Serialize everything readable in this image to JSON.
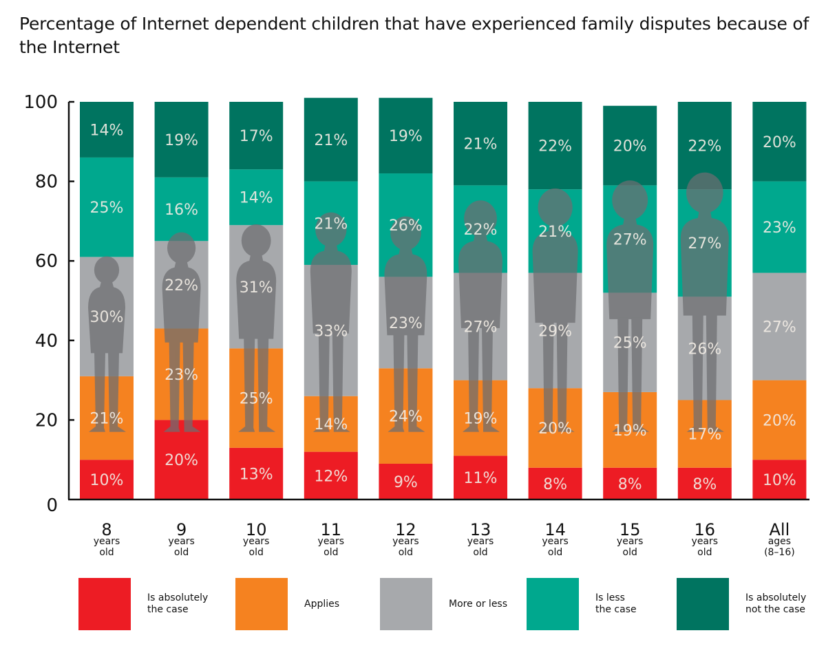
{
  "title": "Percentage of Internet dependent children that have experienced family disputes because of the Internet",
  "chart_data": {
    "type": "bar",
    "stacked": true,
    "title": "Percentage of Internet dependent children that have experienced family disputes because of the Internet",
    "xlabel": "",
    "ylabel": "",
    "ylim": [
      0,
      100
    ],
    "yticks": [
      0,
      20,
      40,
      60,
      80,
      100
    ],
    "grid": false,
    "legend_position": "bottom",
    "categories": [
      {
        "main": "8",
        "sub": "years\nold"
      },
      {
        "main": "9",
        "sub": "years\nold"
      },
      {
        "main": "10",
        "sub": "years\nold"
      },
      {
        "main": "11",
        "sub": "years\nold"
      },
      {
        "main": "12",
        "sub": "years\nold"
      },
      {
        "main": "13",
        "sub": "years\nold"
      },
      {
        "main": "14",
        "sub": "years\nold"
      },
      {
        "main": "15",
        "sub": "years\nold"
      },
      {
        "main": "16",
        "sub": "years\nold"
      },
      {
        "main": "All",
        "sub": "ages\n(8–16)"
      }
    ],
    "series": [
      {
        "name": "Is absolutely the case",
        "color": "#ed1c24",
        "values": [
          10,
          20,
          13,
          12,
          9,
          11,
          8,
          8,
          8,
          10
        ]
      },
      {
        "name": "Applies",
        "color": "#f58220",
        "values": [
          21,
          23,
          25,
          14,
          24,
          19,
          20,
          19,
          17,
          20
        ]
      },
      {
        "name": "More or less",
        "color": "#a7a9ac",
        "values": [
          30,
          22,
          31,
          33,
          23,
          27,
          29,
          25,
          26,
          27
        ]
      },
      {
        "name": "Is less the case",
        "color": "#00a88e",
        "values": [
          25,
          16,
          14,
          21,
          26,
          22,
          21,
          27,
          27,
          23
        ]
      },
      {
        "name": "Is absolutely not the case",
        "color": "#007460",
        "values": [
          14,
          19,
          17,
          21,
          19,
          21,
          22,
          20,
          22,
          20
        ]
      }
    ],
    "value_label_suffix": "%"
  },
  "legend": [
    {
      "label": "Is absolutely\nthe case",
      "color": "#ed1c24"
    },
    {
      "label": "Applies",
      "color": "#f58220"
    },
    {
      "label": "More or less",
      "color": "#a7a9ac"
    },
    {
      "label": "Is less\nthe case",
      "color": "#00a88e"
    },
    {
      "label": "Is absolutely\nnot the case",
      "color": "#007460"
    }
  ],
  "decorations": {
    "silhouette_color": "#6d6e71",
    "silhouette_description": "child silhouettes overlaid on age bars 8–16"
  }
}
